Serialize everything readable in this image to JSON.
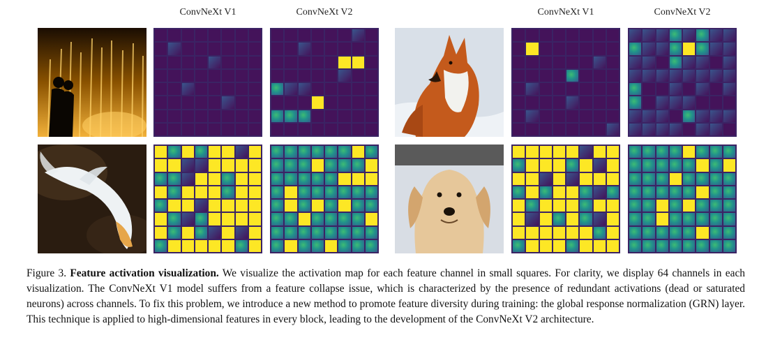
{
  "labels": {
    "left_v1": "ConvNeXt V1",
    "left_v2": "ConvNeXt V2",
    "right_v1": "ConvNeXt V1",
    "right_v2": "ConvNeXt V2"
  },
  "palette": {
    "dark": "#44135a",
    "blue": "#39568c",
    "teal": "#21918c",
    "green": "#3dbc74",
    "yellow": "#fde725",
    "border": "#3b2364"
  },
  "grids": {
    "fountain_v1": "0000000001000000000010000000000000100000000001000000000000000000",
    "fountain_v2": "0000001000100000000003300000010021100000000300002220000000000000",
    "fox_v1": "0000000003000000000000100000200001000000000010000100000000000001",
    "fox_v2": "1112121121123211110211011111111120010101201110001110211111110110",
    "fish_v1": "3232331333113333221332333233323323313333321233333232131323333323",
    "fish_v2": "2222223222232223222223332322222223232322223222232222222223223222",
    "dog_v1": "3333313323332313331313332323321232333233313232133333332323332333",
    "dog_v2": "2222322222222323222322222222232222323222223222222222232222222222"
  },
  "caption": {
    "prefix": "Figure 3. ",
    "title": "Feature activation visualization.",
    "body": " We visualize the activation map for each feature channel in small squares. For clarity, we display 64 channels in each visualization. The ConvNeXt V1 model suffers from a feature collapse issue, which is characterized by the presence of redundant activations (dead or saturated neurons) across channels. To fix this problem, we introduce a new method to promote feature diversity during training: the global response normalization (GRN) layer. This technique is applied to high-dimensional features in every block, leading to the development of the ConvNeXt V2 architecture."
  }
}
